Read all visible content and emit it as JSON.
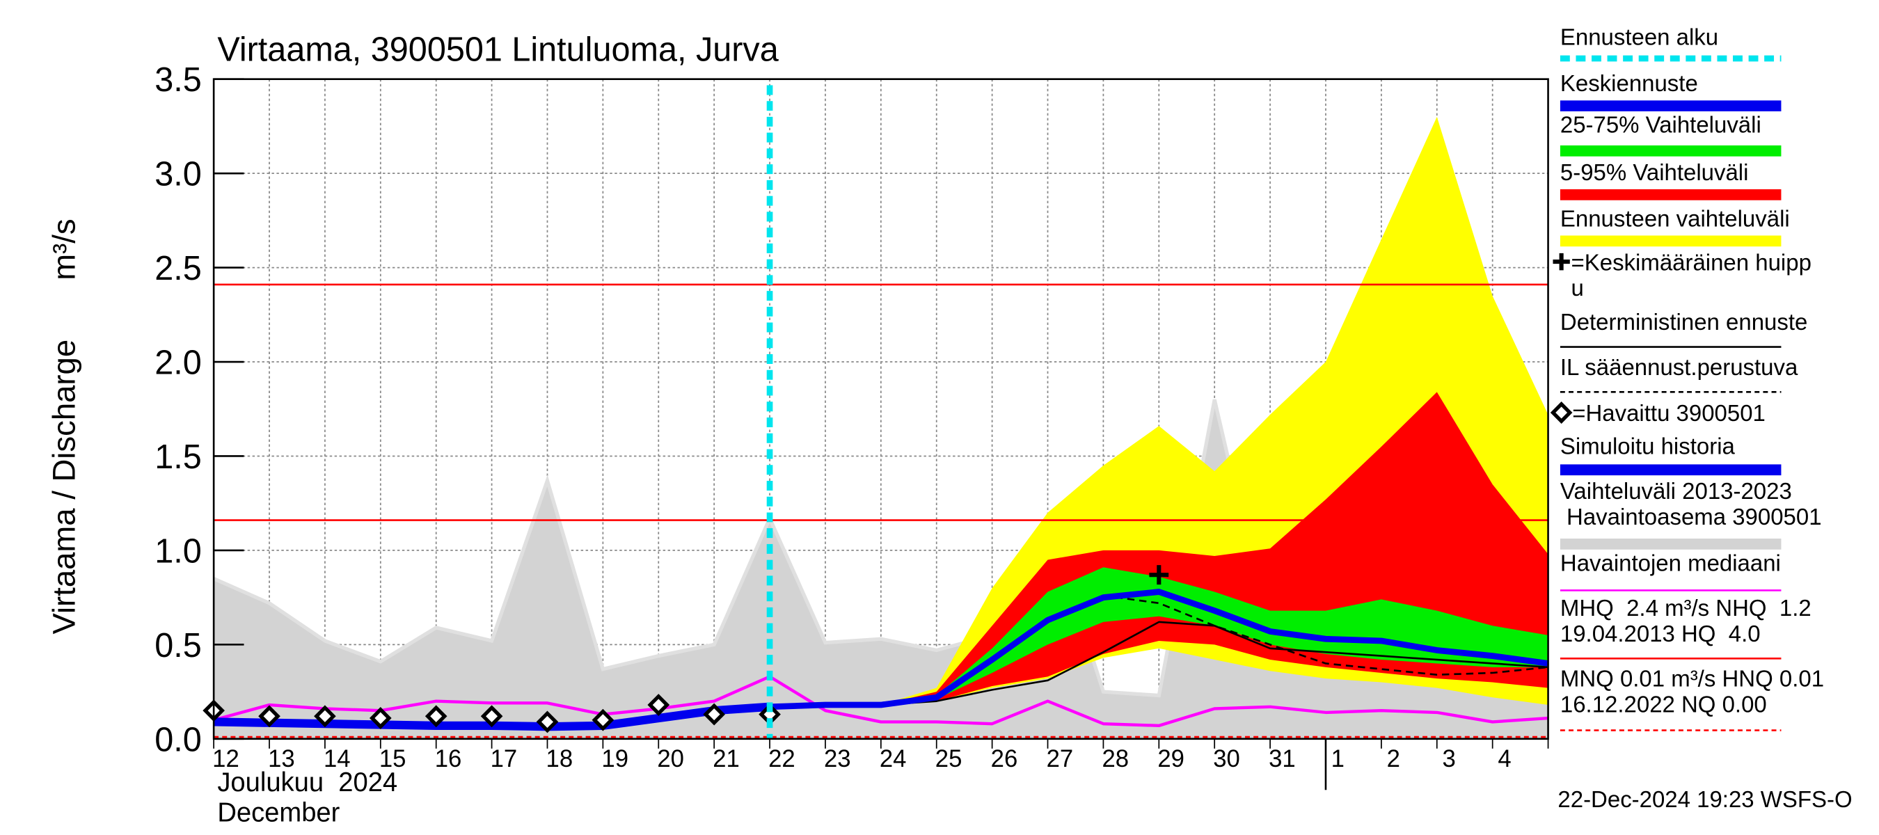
{
  "chart_data": {
    "type": "forecast",
    "title": "Virtaama, 3900501 Lintuluoma, Jurva",
    "y_label": "Virtaama / Discharge",
    "y_unit": "m³/s",
    "categories": [
      "12",
      "13",
      "14",
      "15",
      "16",
      "17",
      "18",
      "19",
      "20",
      "21",
      "22",
      "23",
      "24",
      "25",
      "26",
      "27",
      "28",
      "29",
      "30",
      "31",
      "1",
      "2",
      "3",
      "4",
      null
    ],
    "month_labels": [
      "Joulukuu  2024",
      "December"
    ],
    "month_start_index": 20,
    "forecast_start_index": 10,
    "ylim": [
      0,
      3.5
    ],
    "yticks": [
      {
        "value": 0,
        "label": "0.0"
      },
      0.5,
      {
        "value": 1,
        "label": "1.0"
      },
      1.5,
      {
        "value": 2,
        "label": "2.0"
      },
      2.5,
      {
        "value": 3,
        "label": "3.0"
      },
      3.5
    ],
    "grid": true,
    "hlines": [
      {
        "value": 2.41,
        "color": "#ff0000",
        "dashed": false
      },
      {
        "value": 1.16,
        "color": "#ff0000",
        "dashed": false
      },
      {
        "value": 0.01,
        "color": "#ff0000",
        "dashed": true
      }
    ],
    "series": [
      {
        "kind": "band",
        "color": "#d3d3d3",
        "edge_color": "#e0e0e0",
        "lower": [
          0,
          0,
          0,
          0,
          0,
          0,
          0,
          0,
          0,
          0,
          0,
          0,
          0,
          0,
          0,
          0,
          0,
          0,
          0,
          0,
          0,
          0,
          0,
          0,
          0
        ],
        "upper": [
          0.85,
          0.72,
          0.52,
          0.41,
          0.59,
          0.52,
          1.37,
          0.37,
          0.44,
          0.5,
          1.17,
          0.51,
          0.53,
          0.47,
          0.55,
          1.17,
          0.25,
          0.23,
          1.8,
          0.53,
          1.08,
          0.4,
          0.58,
          0.5,
          0.5
        ]
      },
      {
        "kind": "band",
        "color": "#ffff00",
        "lower": [
          null,
          null,
          null,
          null,
          null,
          null,
          null,
          null,
          null,
          null,
          null,
          null,
          0.18,
          0.2,
          0.27,
          0.32,
          0.43,
          0.48,
          0.42,
          0.36,
          0.32,
          0.3,
          0.27,
          0.22,
          0.18
        ],
        "upper": [
          null,
          null,
          null,
          null,
          null,
          null,
          null,
          null,
          null,
          null,
          null,
          null,
          0.18,
          0.27,
          0.8,
          1.2,
          1.45,
          1.66,
          1.42,
          1.72,
          2.0,
          2.65,
          3.3,
          2.35,
          1.72
        ]
      },
      {
        "kind": "band",
        "color": "#ff0000",
        "lower": [
          null,
          null,
          null,
          null,
          null,
          null,
          null,
          null,
          null,
          null,
          null,
          null,
          0.18,
          0.2,
          0.28,
          0.33,
          0.45,
          0.52,
          0.5,
          0.42,
          0.38,
          0.35,
          0.32,
          0.3,
          0.27
        ],
        "upper": [
          null,
          null,
          null,
          null,
          null,
          null,
          null,
          null,
          null,
          null,
          null,
          null,
          0.18,
          0.25,
          0.6,
          0.95,
          1.0,
          1.0,
          0.97,
          1.01,
          1.27,
          1.55,
          1.84,
          1.35,
          0.98
        ]
      },
      {
        "kind": "band",
        "color": "#00ee00",
        "lower": [
          null,
          null,
          null,
          null,
          null,
          null,
          null,
          null,
          null,
          null,
          null,
          null,
          0.18,
          0.21,
          0.35,
          0.5,
          0.62,
          0.65,
          0.6,
          0.5,
          0.45,
          0.42,
          0.4,
          0.38,
          0.38
        ],
        "upper": [
          null,
          null,
          null,
          null,
          null,
          null,
          null,
          null,
          null,
          null,
          null,
          null,
          0.18,
          0.23,
          0.48,
          0.78,
          0.91,
          0.86,
          0.78,
          0.68,
          0.68,
          0.74,
          0.68,
          0.6,
          0.55
        ]
      },
      {
        "kind": "line",
        "color": "#ff00ff",
        "width": 2.5,
        "dashed": false,
        "values": [
          0.1,
          0.18,
          0.16,
          0.15,
          0.2,
          0.19,
          0.19,
          0.13,
          0.16,
          0.2,
          0.33,
          0.15,
          0.09,
          0.09,
          0.08,
          0.2,
          0.08,
          0.07,
          0.16,
          0.17,
          0.14,
          0.15,
          0.14,
          0.09,
          0.11
        ]
      },
      {
        "kind": "line",
        "color": "#000000",
        "width": 1.5,
        "dashed": false,
        "values": [
          null,
          null,
          null,
          null,
          null,
          null,
          null,
          null,
          null,
          null,
          null,
          null,
          0.18,
          0.2,
          0.26,
          0.31,
          0.46,
          0.62,
          0.6,
          0.48,
          0.46,
          0.44,
          0.42,
          0.4,
          0.38
        ]
      },
      {
        "kind": "line",
        "color": "#000000",
        "width": 1.5,
        "dashed": true,
        "values": [
          null,
          null,
          null,
          null,
          null,
          null,
          null,
          null,
          null,
          null,
          null,
          null,
          null,
          null,
          null,
          null,
          0.76,
          0.72,
          0.6,
          0.5,
          0.4,
          0.37,
          0.34,
          0.35,
          0.38
        ]
      },
      {
        "kind": "line",
        "color": "#0000ee",
        "width": 7,
        "dashed": false,
        "values": [
          0.09,
          0.085,
          0.08,
          0.075,
          0.07,
          0.07,
          0.065,
          0.07,
          0.11,
          0.15,
          0.17,
          null,
          null,
          null,
          null,
          null,
          null,
          null,
          null,
          null,
          null,
          null,
          null,
          null,
          null
        ]
      },
      {
        "kind": "line",
        "color": "#0000ee",
        "width": 5,
        "dashed": false,
        "values": [
          null,
          null,
          null,
          null,
          null,
          null,
          null,
          null,
          null,
          null,
          0.17,
          0.18,
          0.18,
          0.22,
          0.42,
          0.63,
          0.75,
          0.78,
          0.68,
          0.57,
          0.53,
          0.52,
          0.47,
          0.44,
          0.4
        ]
      },
      {
        "kind": "points",
        "color": "#000000",
        "values": [
          0.15,
          0.12,
          0.12,
          0.11,
          0.12,
          0.12,
          0.09,
          0.1,
          0.18,
          0.13,
          0.13,
          null,
          null,
          null,
          null,
          null,
          null,
          null,
          null,
          null,
          null,
          null,
          null,
          null,
          null
        ]
      },
      {
        "kind": "peak",
        "color": "#000000",
        "index": 17,
        "value": 0.87
      }
    ],
    "legend": [
      {
        "lines": [
          "Ennusteen alku"
        ],
        "color": "#00e5ee",
        "style": "dashed"
      },
      {
        "lines": [
          "Keskiennuste"
        ],
        "color": "#0000ee",
        "style": "thick"
      },
      {
        "lines": [
          "25-75% Vaihteluväli"
        ],
        "color": "#00ee00",
        "style": "thick"
      },
      {
        "lines": [
          "5-95% Vaihteluväli"
        ],
        "color": "#ff0000",
        "style": "thick"
      },
      {
        "lines": [
          "Ennusteen vaihteluväli"
        ],
        "color": "#ffff00",
        "style": "thick"
      },
      {
        "lines": [
          "=Keskimääräinen huipp",
          "u"
        ],
        "color": "#000000",
        "style": "cross"
      },
      {
        "lines": [
          "Deterministinen ennuste"
        ],
        "color": "#000000",
        "style": "thin"
      },
      {
        "lines": [
          "IL sääennust.perustuva"
        ],
        "color": "#000000",
        "style": "thin-dashed"
      },
      {
        "lines": [
          "=Havaittu 3900501"
        ],
        "color": "#000000",
        "style": "diamond"
      },
      {
        "lines": [
          "Simuloitu historia"
        ],
        "color": "#0000ee",
        "style": "thick"
      },
      {
        "lines": [
          "Vaihteluväli 2013-2023",
          " Havaintoasema 3900501"
        ],
        "color": "#d3d3d3",
        "style": "thick"
      },
      {
        "lines": [
          "Havaintojen mediaani"
        ],
        "color": "#ff00ff",
        "style": "thin"
      },
      {
        "lines": [
          "MHQ  2.4 m³/s NHQ  1.2",
          "19.04.2013 HQ  4.0"
        ],
        "color": "#ff0000",
        "style": "thin"
      },
      {
        "lines": [
          "MNQ 0.01 m³/s HNQ 0.01",
          "16.12.2022 NQ 0.00"
        ],
        "color": "#ff0000",
        "style": "thin-dashed"
      }
    ],
    "footer": "22-Dec-2024 19:23 WSFS-O"
  }
}
